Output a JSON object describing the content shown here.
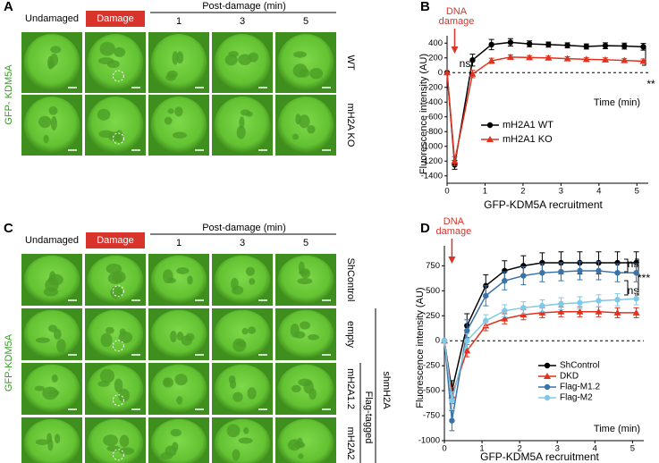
{
  "panel_a": {
    "letter": "A",
    "headers": [
      "Undamaged",
      "Damage"
    ],
    "post_label": "Post-damage (min)",
    "times": [
      "1",
      "3",
      "5"
    ],
    "rows": [
      "WT",
      "mH2A KO"
    ],
    "stain": "GFP- KDM5A"
  },
  "panel_c": {
    "letter": "C",
    "headers": [
      "Undamaged",
      "Damage"
    ],
    "post_label": "Post-damage (min)",
    "times": [
      "1",
      "3",
      "5"
    ],
    "rows": [
      "ShControl",
      "empty",
      "mH2A1.2",
      "mH2A2"
    ],
    "group_outer": "shmH2A",
    "group_inner": "Flag-tagged",
    "stain": "GFP-KDM5A"
  },
  "chart_data": [
    {
      "type": "line",
      "letter": "B",
      "ylabel": "Fluorescence intensity (AU)",
      "xlabel": "GFP-KDM5A recruitment",
      "time_label": "Time (min)",
      "arrow_label": [
        "DNA",
        "damage"
      ],
      "annotations": [
        "ns",
        "**"
      ],
      "xlim": [
        0,
        5.3
      ],
      "xticks": [
        0,
        1,
        2,
        3,
        4,
        5
      ],
      "ylim": [
        -1500,
        500
      ],
      "yticks": [
        -1400,
        -1200,
        -1000,
        -800,
        -600,
        -400,
        -200,
        0,
        200,
        400
      ],
      "x": [
        0,
        0.2,
        0.67,
        1.17,
        1.67,
        2.17,
        2.67,
        3.17,
        3.67,
        4.17,
        4.67,
        5.17
      ],
      "series": [
        {
          "name": "mH2A1 WT",
          "color": "#000000",
          "marker": "circle",
          "values": [
            0,
            -1250,
            170,
            380,
            410,
            390,
            380,
            370,
            355,
            365,
            360,
            350
          ],
          "errors": [
            0,
            60,
            80,
            70,
            50,
            40,
            35,
            35,
            35,
            40,
            40,
            45
          ]
        },
        {
          "name": "mH2A1 KO",
          "color": "#e0321e",
          "marker": "triangle",
          "values": [
            0,
            -1200,
            -20,
            160,
            210,
            205,
            200,
            190,
            180,
            175,
            165,
            155
          ],
          "errors": [
            0,
            60,
            50,
            35,
            30,
            25,
            25,
            25,
            25,
            25,
            25,
            30
          ]
        }
      ]
    },
    {
      "type": "line",
      "letter": "D",
      "ylabel": "Fluorescence intensity (AU)",
      "xlabel": "GFP-KDM5A recruitment",
      "time_label": "Time (min)",
      "arrow_label": [
        "DNA",
        "damage"
      ],
      "annotations": [
        "ns",
        "***",
        "ns"
      ],
      "xlim": [
        0,
        5.3
      ],
      "xticks": [
        0,
        1,
        2,
        3,
        4,
        5
      ],
      "ylim": [
        -1000,
        950
      ],
      "yticks": [
        -1000,
        -750,
        -500,
        -250,
        0,
        250,
        500,
        750
      ],
      "x": [
        0,
        0.2,
        0.6,
        1.1,
        1.6,
        2.1,
        2.6,
        3.1,
        3.6,
        4.1,
        4.6,
        5.1
      ],
      "series": [
        {
          "name": "ShControl",
          "color": "#000000",
          "marker": "circle",
          "values": [
            0,
            -500,
            150,
            550,
            700,
            750,
            780,
            780,
            780,
            780,
            780,
            780
          ],
          "errors": [
            0,
            100,
            120,
            110,
            100,
            100,
            100,
            110,
            110,
            110,
            110,
            110
          ]
        },
        {
          "name": "DKD",
          "color": "#e0321e",
          "marker": "triangle",
          "values": [
            0,
            -550,
            -100,
            150,
            220,
            260,
            280,
            290,
            290,
            290,
            280,
            280
          ],
          "errors": [
            0,
            80,
            60,
            50,
            50,
            50,
            50,
            50,
            50,
            50,
            50,
            50
          ]
        },
        {
          "name": "Flag-M1.2",
          "color": "#3a73a8",
          "marker": "circle",
          "values": [
            0,
            -800,
            100,
            450,
            600,
            650,
            680,
            690,
            700,
            700,
            680,
            680
          ],
          "errors": [
            0,
            100,
            110,
            100,
            90,
            90,
            90,
            90,
            90,
            90,
            90,
            90
          ]
        },
        {
          "name": "Flag-M2",
          "color": "#7ec8e8",
          "marker": "circle",
          "values": [
            0,
            -600,
            0,
            200,
            300,
            330,
            350,
            370,
            380,
            400,
            410,
            420
          ],
          "errors": [
            0,
            90,
            70,
            60,
            60,
            60,
            60,
            60,
            60,
            60,
            60,
            60
          ]
        }
      ]
    }
  ]
}
